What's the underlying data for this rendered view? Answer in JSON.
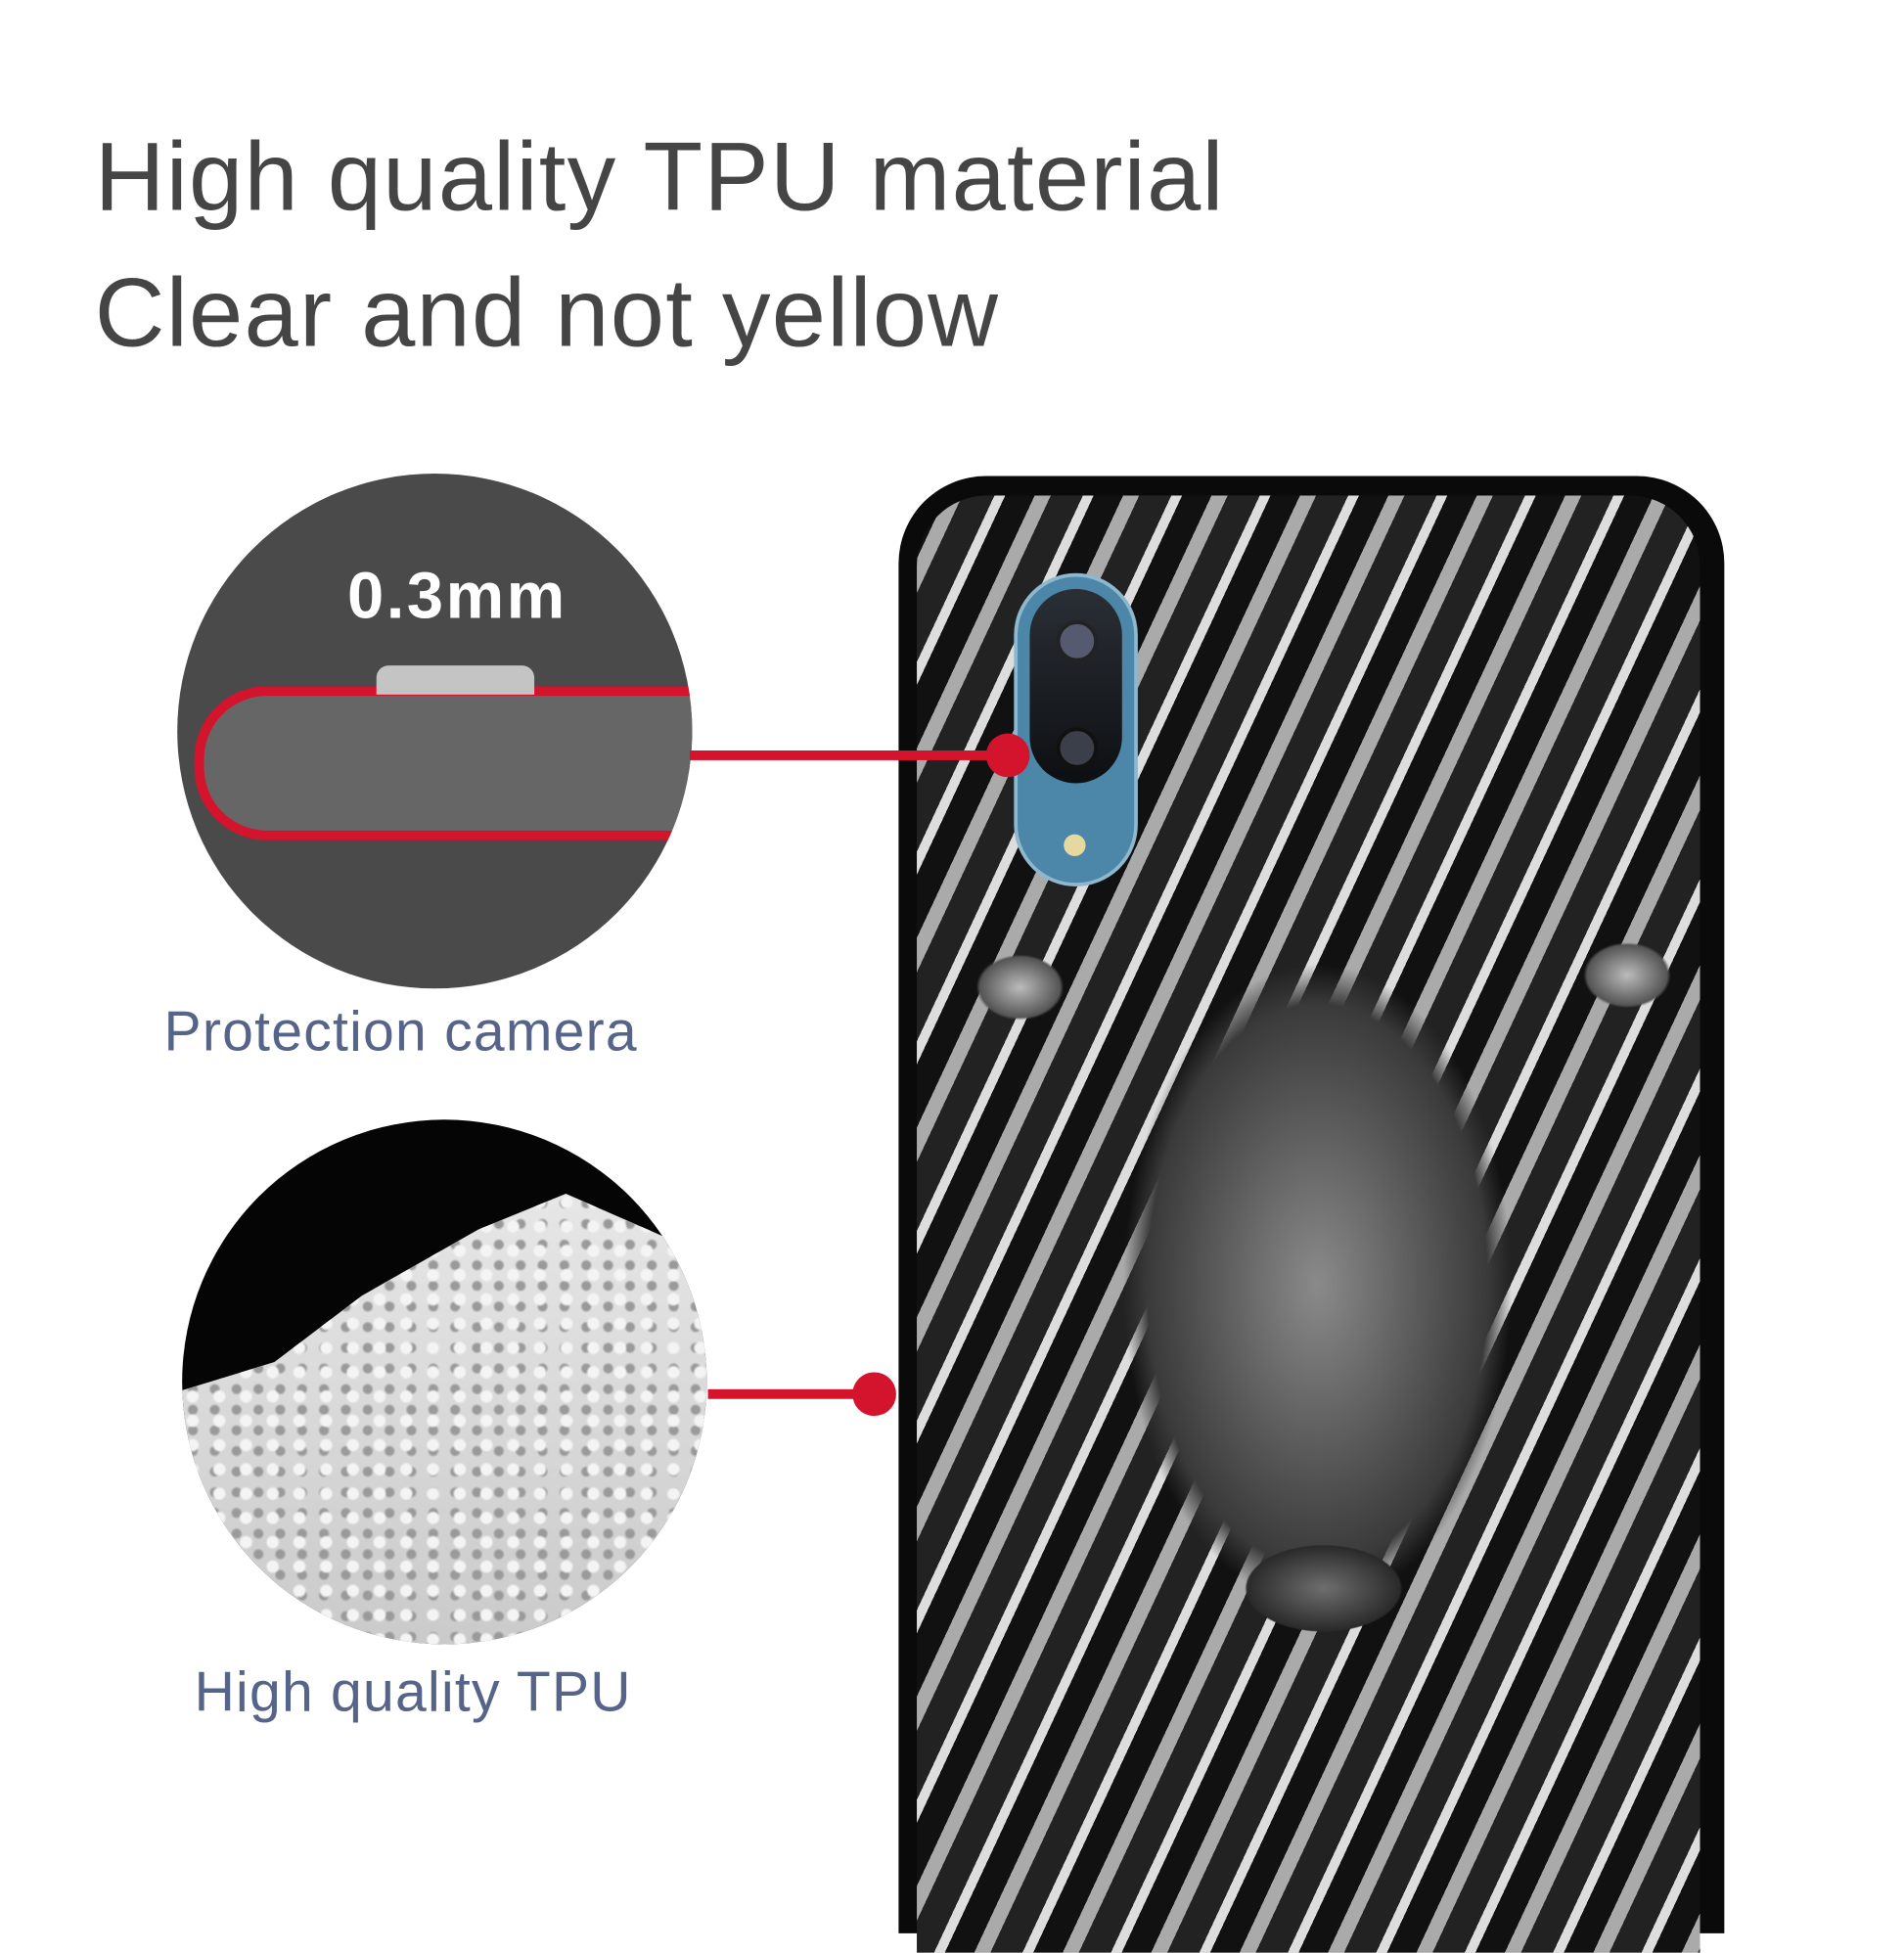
{
  "headline": {
    "line1": "High quality TPU material",
    "line2": "Clear and not yellow"
  },
  "callouts": [
    {
      "badge": "0.3mm",
      "caption": "Protection camera"
    },
    {
      "caption": "High quality TPU"
    }
  ],
  "colors": {
    "accent_red": "#d3142c",
    "text_gray": "#454545",
    "caption_blue": "#56648a",
    "case_black": "#0a0a0a",
    "camera_blue": "#4c86a8"
  }
}
